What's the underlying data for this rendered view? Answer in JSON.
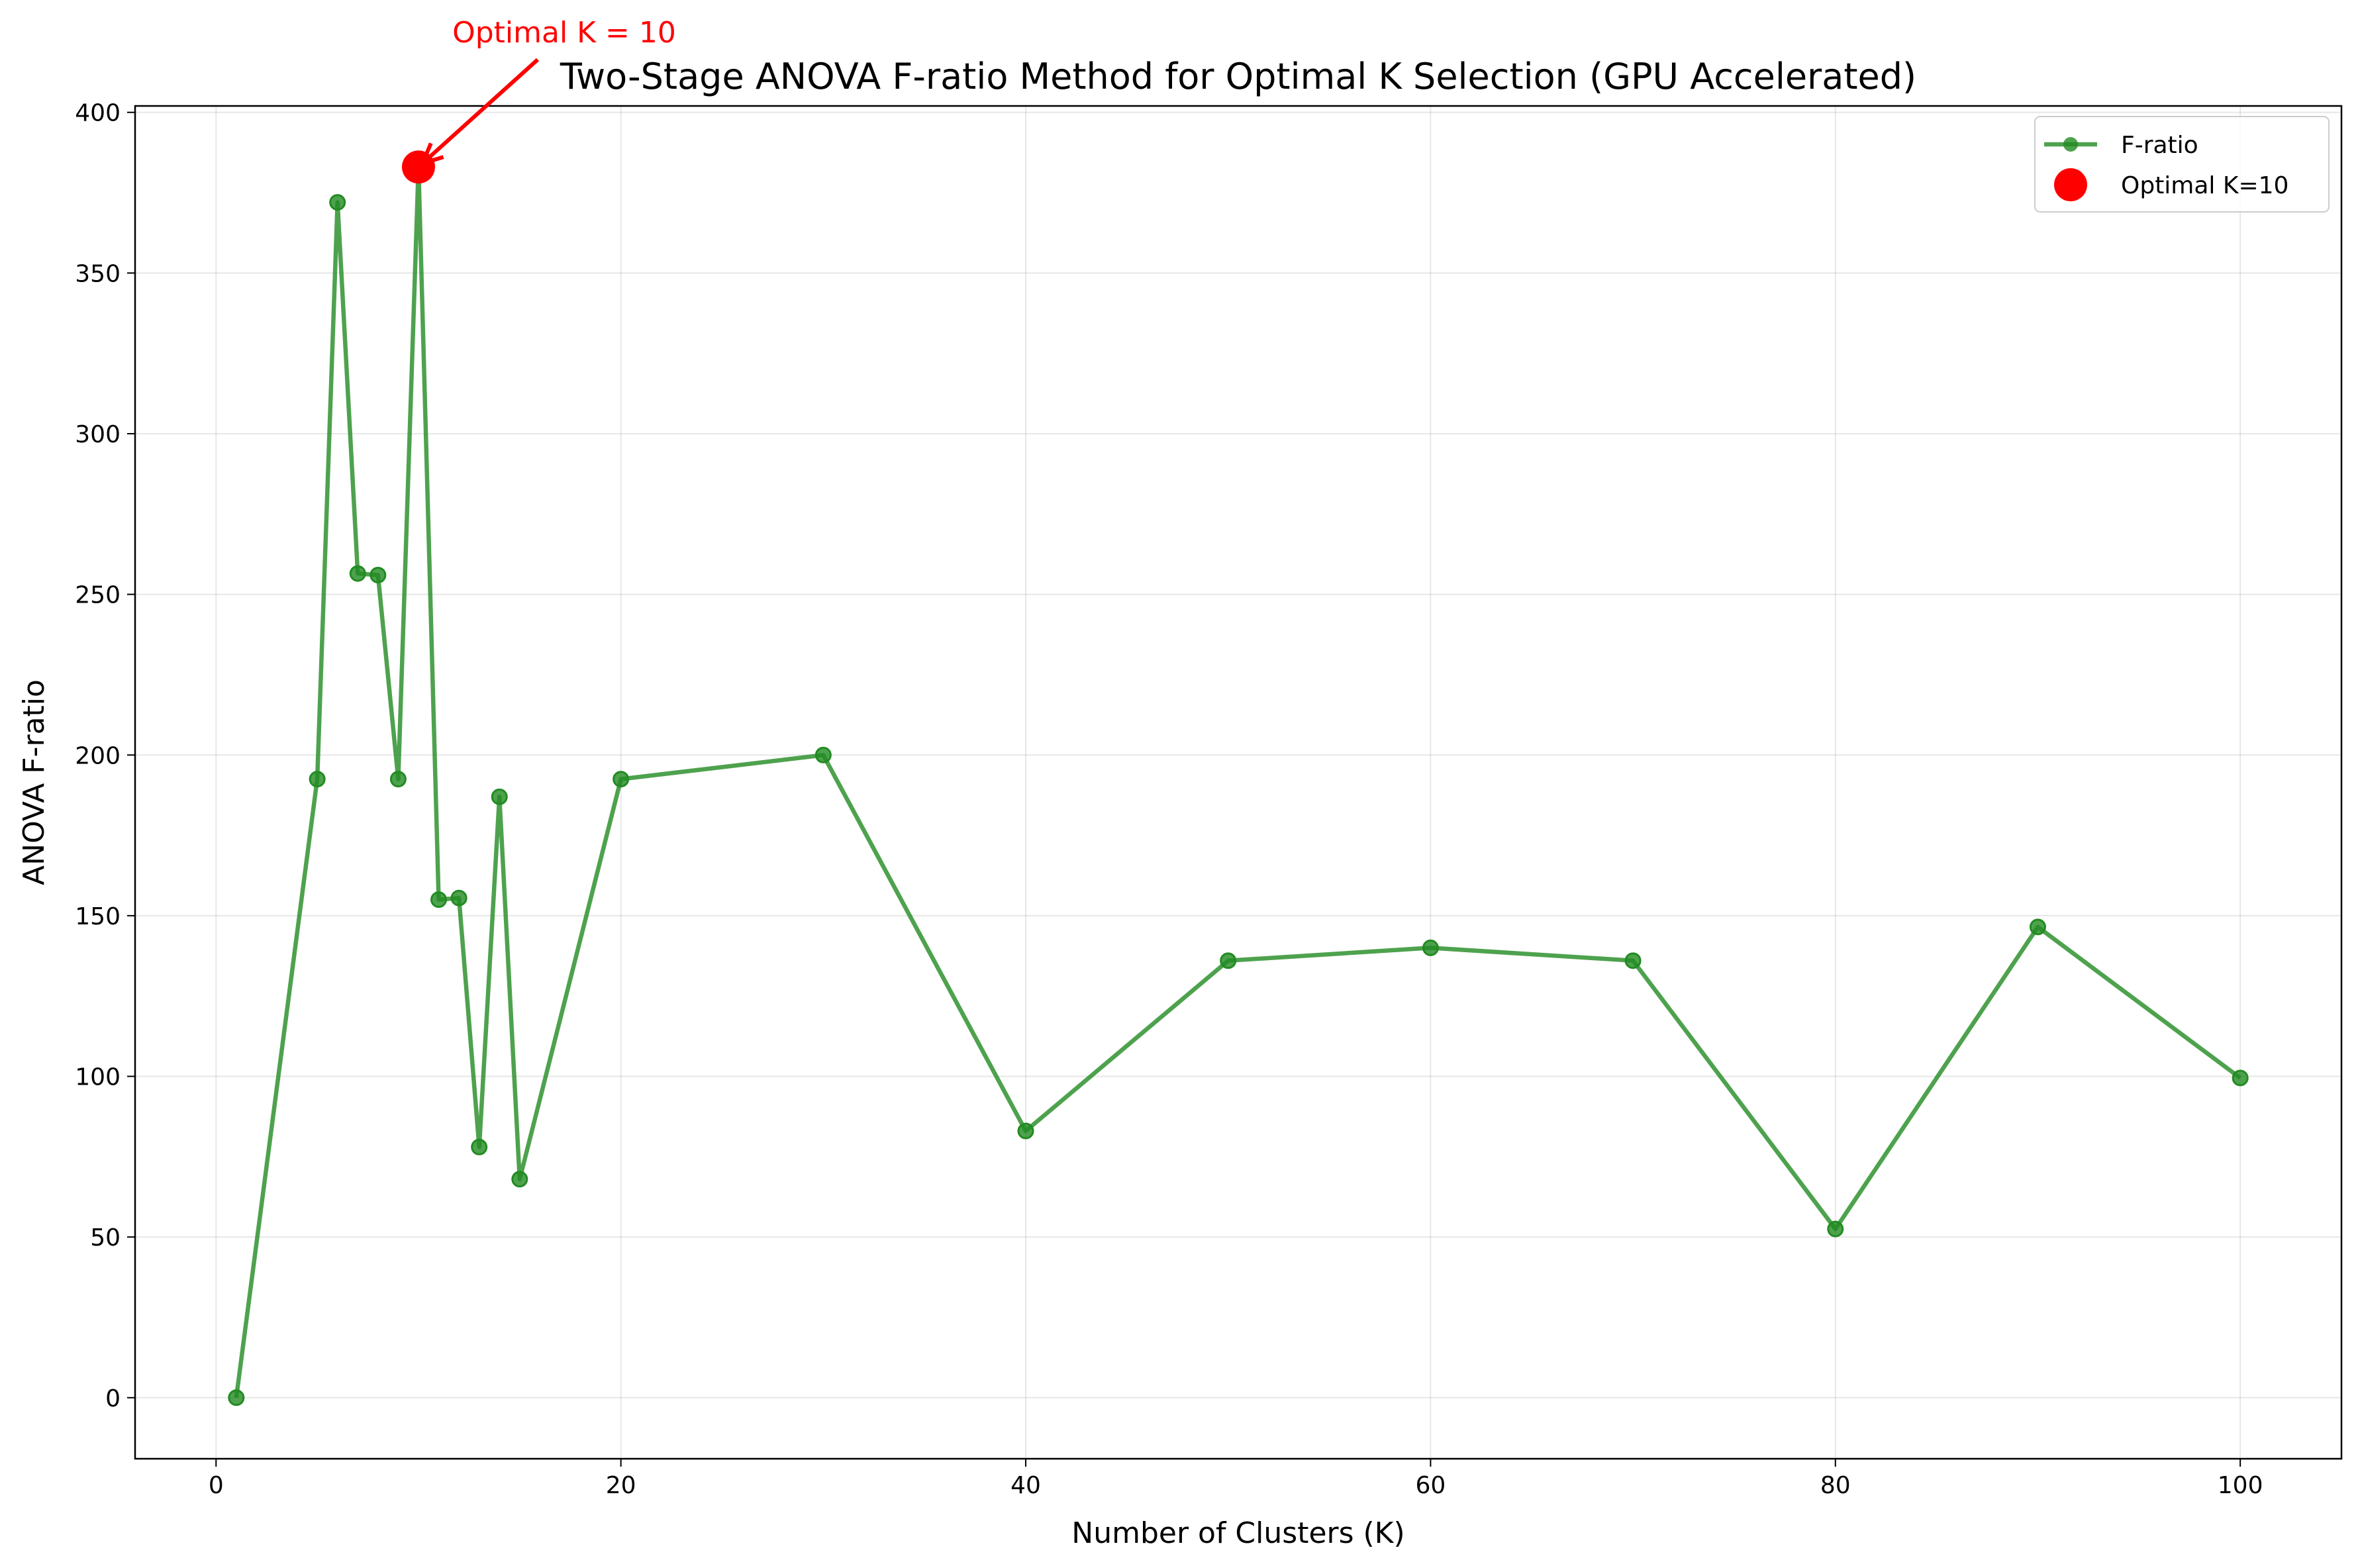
{
  "chart_data": {
    "type": "line",
    "title": "Two-Stage ANOVA F-ratio Method for Optimal K Selection (GPU Accelerated)",
    "xlabel": "Number of Clusters (K)",
    "ylabel": "ANOVA F-ratio",
    "xlim": [
      -4,
      105
    ],
    "ylim": [
      -19,
      402
    ],
    "xticks": [
      0,
      20,
      40,
      60,
      80,
      100
    ],
    "yticks": [
      0,
      50,
      100,
      150,
      200,
      250,
      300,
      350,
      400
    ],
    "grid": true,
    "legend_position": "upper right",
    "series": [
      {
        "name": "F-ratio",
        "color": "#228B22",
        "marker": "circle",
        "x": [
          1,
          5,
          6,
          7,
          8,
          9,
          10,
          11,
          12,
          13,
          14,
          15,
          20,
          30,
          40,
          50,
          60,
          70,
          80,
          90,
          100
        ],
        "y": [
          0,
          192.5,
          372,
          256.5,
          256,
          192.5,
          383,
          155,
          155.5,
          78,
          187,
          68,
          192.5,
          200,
          83,
          136,
          140,
          136,
          52.5,
          146.5,
          99.5
        ]
      },
      {
        "name": "Optimal K=10",
        "color": "#ff0000",
        "marker": "circle",
        "x": [
          10
        ],
        "y": [
          383
        ]
      }
    ],
    "annotation": {
      "text": "Optimal K = 10",
      "color": "#ff0000",
      "target_x": 10,
      "target_y": 383
    }
  }
}
